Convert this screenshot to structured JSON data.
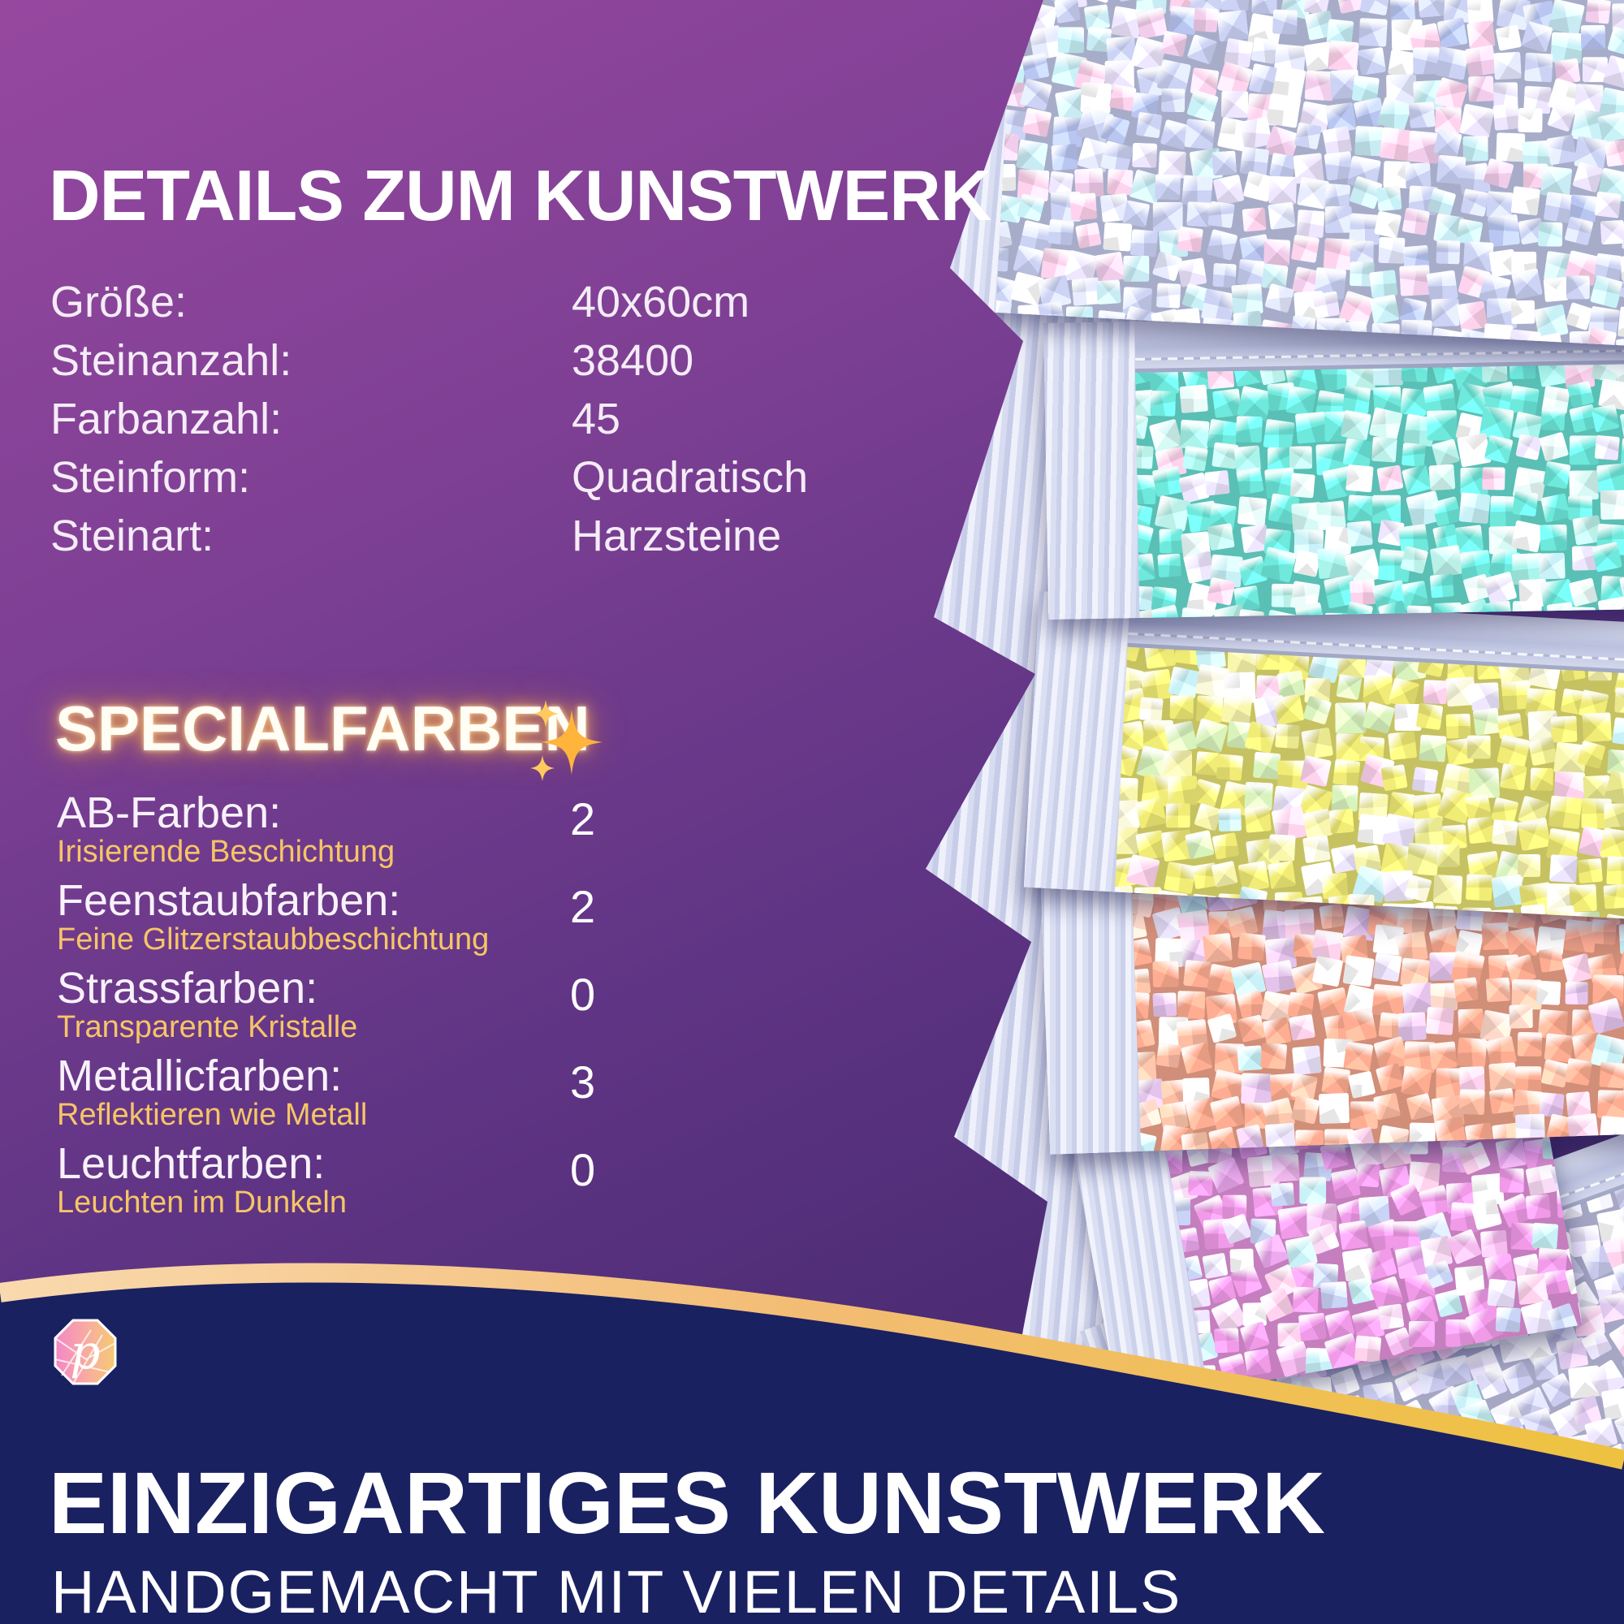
{
  "details": {
    "title": "DETAILS ZUM KUNSTWERK",
    "specs": [
      {
        "label": "Größe:",
        "value": "40x60cm"
      },
      {
        "label": "Steinanzahl:",
        "value": "38400"
      },
      {
        "label": "Farbanzahl:",
        "value": "45"
      },
      {
        "label": "Steinform:",
        "value": "Quadratisch"
      },
      {
        "label": "Steinart:",
        "value": "Harzsteine"
      }
    ]
  },
  "specialfarben": {
    "title": "SPECIALFARBEN",
    "sparkle_icon": "sparkles-icon",
    "items": [
      {
        "label": "AB-Farben:",
        "description": "Irisierende Beschichtung",
        "count": "2"
      },
      {
        "label": "Feenstaubfarben:",
        "description": "Feine Glitzerstaubbeschichtung",
        "count": "2"
      },
      {
        "label": "Strassfarben:",
        "description": "Transparente Kristalle",
        "count": "0"
      },
      {
        "label": "Metallicfarben:",
        "description": "Reflektieren wie Metall",
        "count": "3"
      },
      {
        "label": "Leuchtfarben:",
        "description": "Leuchten im Dunkeln",
        "count": "0"
      }
    ]
  },
  "footer": {
    "heading": "EINZIGARTIGES KUNSTWERK",
    "subheading": "HANDGEMACHT MIT VIELEN DETAILS",
    "logo_letter": "p"
  },
  "colors": {
    "background_top": "#96489f",
    "background_bottom": "#402767",
    "accent_gold_text": "#f6c567",
    "sparkle_orange": "#ffb43b",
    "band_navy": "#1a2161",
    "band_gold_left": "#f9d9ae",
    "band_gold_right": "#eec23f",
    "logo_pink": "#f487c6",
    "logo_yellow": "#f7ca72"
  },
  "photo": {
    "description": "Fan of zip bags filled with square iridescent diamond painting drills",
    "sheens": [
      "#ffd3ee",
      "#c8f2f8",
      "#efe7ff",
      "#ffffff"
    ],
    "bags": [
      {
        "name": "weiss-ab",
        "base": "#ccd3f5",
        "accents": [
          "#e8ecff",
          "#b9c6f2",
          "#f2cdeb",
          "#c9ecf4"
        ],
        "sheen": 0.45
      },
      {
        "name": "cyan",
        "base": "#6ee9dc",
        "accents": [
          "#a9f5ec",
          "#d6faf5",
          "#eafdfb",
          "#baf0e8"
        ],
        "sheen": 0.22
      },
      {
        "name": "gelb",
        "base": "#f1ec76",
        "accents": [
          "#f9f6ad",
          "#d9f3bd",
          "#fbf9dc",
          "#e9e88e"
        ],
        "sheen": 0.22
      },
      {
        "name": "peach",
        "base": "#ffad92",
        "accents": [
          "#ffc7ad",
          "#ffdacb",
          "#e4c4ec",
          "#ffbda4"
        ],
        "sheen": 0.25
      },
      {
        "name": "pink",
        "base": "#f09ae8",
        "accents": [
          "#f6bcf0",
          "#fbdcf7",
          "#c9d4f6",
          "#eeaaf0"
        ],
        "sheen": 0.25
      },
      {
        "name": "lavendel",
        "base": "#cbccf0",
        "accents": [
          "#dddcf8",
          "#edebfc",
          "#f7f5fe",
          "#e0c9ef"
        ],
        "sheen": 0.45
      }
    ]
  }
}
